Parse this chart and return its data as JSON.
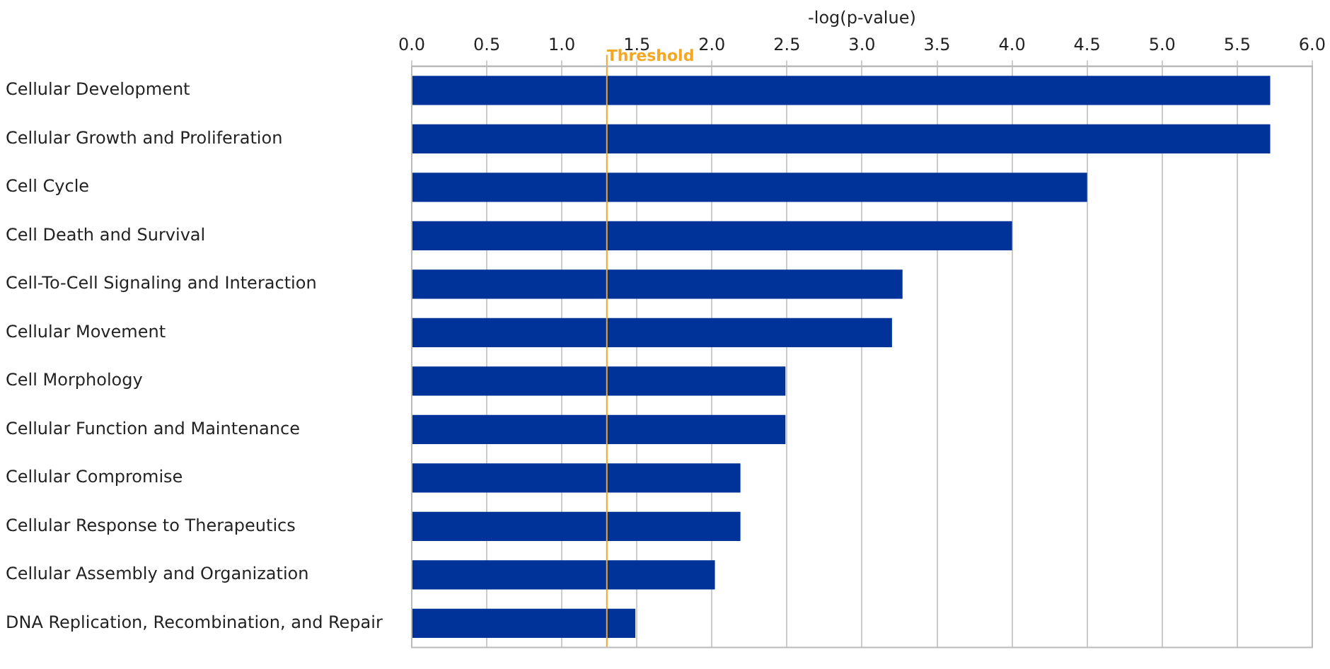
{
  "chart_data": {
    "type": "bar",
    "orientation": "horizontal",
    "xlabel": "-log(p-value)",
    "categories": [
      "Cellular Development",
      "Cellular Growth and Proliferation",
      "Cell Cycle",
      "Cell Death and Survival",
      "Cell-To-Cell Signaling and Interaction",
      "Cellular Movement",
      "Cell Morphology",
      "Cellular Function and Maintenance",
      "Cellular Compromise",
      "Cellular Response to Therapeutics",
      "Cellular Assembly and Organization",
      "DNA Replication, Recombination, and Repair"
    ],
    "values": [
      5.72,
      5.72,
      4.5,
      4.0,
      3.27,
      3.2,
      2.49,
      2.49,
      2.19,
      2.19,
      2.02,
      1.49
    ],
    "color": "#003399",
    "xlim": [
      0,
      6
    ],
    "xticks": [
      {
        "value": 0,
        "label": "0.0"
      },
      {
        "value": 0.5,
        "label": "0.5"
      },
      {
        "value": 1,
        "label": "1.0"
      },
      {
        "value": 1.5,
        "label": "1.5"
      },
      {
        "value": 2,
        "label": "2.0"
      },
      {
        "value": 2.5,
        "label": "2.5"
      },
      {
        "value": 3,
        "label": "3.0"
      },
      {
        "value": 3.5,
        "label": "3.5"
      },
      {
        "value": 4,
        "label": "4.0"
      },
      {
        "value": 4.5,
        "label": "4.5"
      },
      {
        "value": 5,
        "label": "5.0"
      },
      {
        "value": 5.5,
        "label": "5.5"
      },
      {
        "value": 6,
        "label": "6.0"
      }
    ],
    "grid": "x",
    "ref_lines": [
      {
        "axis": "x",
        "value": 1.3,
        "label": "Threshold",
        "color": "#f5a623"
      }
    ]
  }
}
